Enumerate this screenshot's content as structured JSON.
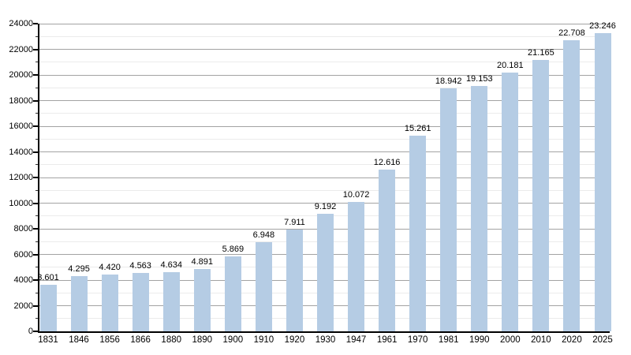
{
  "chart_data": {
    "type": "bar",
    "title": "",
    "xlabel": "",
    "ylabel": "",
    "categories": [
      "1831",
      "1846",
      "1856",
      "1866",
      "1880",
      "1890",
      "1900",
      "1910",
      "1920",
      "1930",
      "1947",
      "1961",
      "1970",
      "1981",
      "1990",
      "2000",
      "2010",
      "2020",
      "2025"
    ],
    "values": [
      3601,
      4295,
      4420,
      4563,
      4634,
      4891,
      5869,
      6948,
      7911,
      9192,
      10072,
      12616,
      15261,
      18942,
      19153,
      20181,
      21165,
      22708,
      23246
    ],
    "value_labels": [
      "3.601",
      "4.295",
      "4.420",
      "4.563",
      "4.634",
      "4.891",
      "5.869",
      "6.948",
      "7.911",
      "9.192",
      "10.072",
      "12.616",
      "15.261",
      "18.942",
      "19.153",
      "20.181",
      "21.165",
      "22.708",
      "23.246"
    ],
    "y_tick_labels": [
      "0",
      "2000",
      "4000",
      "6000",
      "8000",
      "10000",
      "12000",
      "14000",
      "16000",
      "18000",
      "20000",
      "22000",
      "24000"
    ],
    "ylim": [
      0,
      24000
    ],
    "y_major_step": 2000,
    "y_minor_step": 1000,
    "grid": true,
    "legend": false,
    "bar_color": "#b5cce4",
    "major_grid_color": "#a3a3a3",
    "minor_grid_color": "#ebebeb",
    "axis_color": "#000000",
    "text_color": "#000000"
  }
}
